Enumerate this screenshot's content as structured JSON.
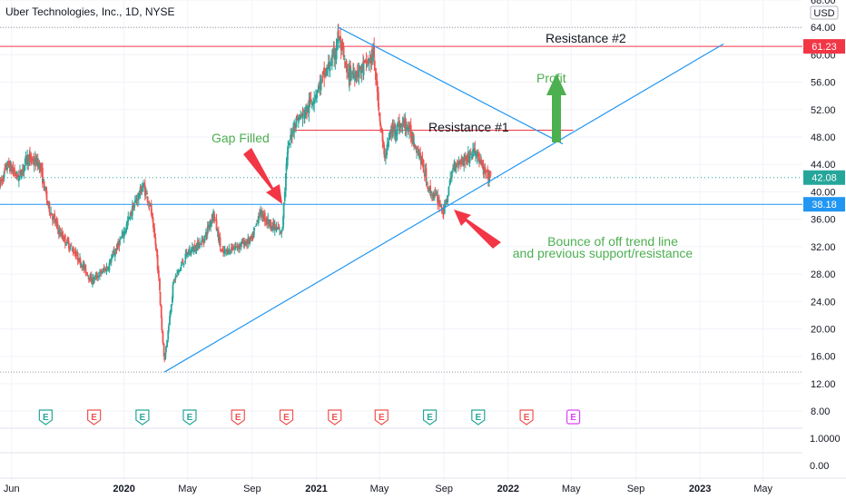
{
  "header": {
    "title": "Uber Technologies, Inc., 1D, NYSE",
    "currency": "USD"
  },
  "colors": {
    "up": "#26a69a",
    "down": "#ef5350",
    "trend": "#2196f3",
    "resistance": "#f23645",
    "green_text": "#4caf50",
    "grid": "#f0f3fa",
    "earn_green": "#26a69a",
    "earn_red": "#ef5350",
    "earn_future": "#e040fb"
  },
  "chart_data": {
    "type": "candlestick",
    "title": "Uber Technologies, Inc., 1D, NYSE",
    "x_ticks": [
      {
        "label": "Jun",
        "date": "2019-06-01",
        "year": false
      },
      {
        "label": "2020",
        "date": "2020-01-01",
        "year": true
      },
      {
        "label": "May",
        "date": "2020-05-01",
        "year": false
      },
      {
        "label": "Sep",
        "date": "2020-09-01",
        "year": false
      },
      {
        "label": "2021",
        "date": "2021-01-01",
        "year": true
      },
      {
        "label": "May",
        "date": "2021-05-01",
        "year": false
      },
      {
        "label": "Sep",
        "date": "2021-09-01",
        "year": false
      },
      {
        "label": "2022",
        "date": "2022-01-01",
        "year": true
      },
      {
        "label": "May",
        "date": "2022-05-01",
        "year": false
      },
      {
        "label": "Sep",
        "date": "2022-09-01",
        "year": false
      },
      {
        "label": "2023",
        "date": "2023-01-01",
        "year": true
      },
      {
        "label": "May",
        "date": "2023-05-01",
        "year": false
      }
    ],
    "x_range": [
      "2019-05-10",
      "2023-07-15"
    ],
    "y_range": [
      5.5,
      68.0
    ],
    "y_ticks": [
      "68.00",
      "64.00",
      "60.00",
      "56.00",
      "52.00",
      "48.00",
      "44.00",
      "40.00",
      "36.00",
      "32.00",
      "28.00",
      "24.00",
      "20.00",
      "16.00",
      "12.00",
      "8.00"
    ],
    "lower_axis_ticks": [
      "1.0000",
      "0.00"
    ],
    "price_path": [
      [
        "2019-05-10",
        41
      ],
      [
        "2019-05-25",
        44
      ],
      [
        "2019-06-15",
        42
      ],
      [
        "2019-07-01",
        45
      ],
      [
        "2019-07-25",
        44
      ],
      [
        "2019-08-10",
        38
      ],
      [
        "2019-09-01",
        34
      ],
      [
        "2019-10-01",
        31
      ],
      [
        "2019-11-01",
        27
      ],
      [
        "2019-12-01",
        29
      ],
      [
        "2020-01-01",
        34
      ],
      [
        "2020-01-20",
        38
      ],
      [
        "2020-02-07",
        41
      ],
      [
        "2020-02-20",
        38
      ],
      [
        "2020-03-05",
        30
      ],
      [
        "2020-03-18",
        15
      ],
      [
        "2020-04-05",
        27
      ],
      [
        "2020-05-01",
        31
      ],
      [
        "2020-06-01",
        33
      ],
      [
        "2020-06-20",
        37
      ],
      [
        "2020-07-05",
        31
      ],
      [
        "2020-08-01",
        32
      ],
      [
        "2020-09-01",
        33
      ],
      [
        "2020-09-15",
        37
      ],
      [
        "2020-10-10",
        35
      ],
      [
        "2020-10-28",
        34
      ],
      [
        "2020-11-06",
        45
      ],
      [
        "2020-11-20",
        50
      ],
      [
        "2020-12-15",
        52
      ],
      [
        "2021-01-10",
        56
      ],
      [
        "2021-02-05",
        60
      ],
      [
        "2021-02-12",
        63
      ],
      [
        "2021-03-01",
        57
      ],
      [
        "2021-04-01",
        58
      ],
      [
        "2021-04-20",
        60
      ],
      [
        "2021-05-10",
        45
      ],
      [
        "2021-05-25",
        49
      ],
      [
        "2021-06-20",
        50
      ],
      [
        "2021-07-15",
        46
      ],
      [
        "2021-08-05",
        40
      ],
      [
        "2021-08-20",
        39
      ],
      [
        "2021-09-01",
        37
      ],
      [
        "2021-09-20",
        44
      ],
      [
        "2021-10-15",
        45
      ],
      [
        "2021-11-01",
        46
      ],
      [
        "2021-11-15",
        43
      ],
      [
        "2021-11-30",
        42
      ]
    ],
    "levels": [
      {
        "name": "resistance-2",
        "value": 61.23,
        "label": "61.23"
      },
      {
        "name": "support",
        "value": 38.18,
        "label": "38.18"
      },
      {
        "name": "last",
        "value": 42.08,
        "label": "42.08"
      },
      {
        "name": "resistance-1",
        "value": 49.0,
        "label": ""
      },
      {
        "name": "top",
        "value": 64.0,
        "label": ""
      },
      {
        "name": "bottom",
        "value": 13.7,
        "label": ""
      }
    ],
    "trend_lines": [
      {
        "name": "rising-trend-line",
        "from": [
          "2020-03-18",
          13.7
        ],
        "to": [
          "2023-02-15",
          61.6
        ]
      },
      {
        "name": "falling-trend-line",
        "from": [
          "2021-02-12",
          64.0
        ],
        "to": [
          "2022-04-15",
          47.0
        ]
      }
    ],
    "resistance_1_range": [
      "2020-11-20",
      "2022-05-05"
    ],
    "earnings": [
      {
        "date": "2019-08-05",
        "type": "green"
      },
      {
        "date": "2019-11-05",
        "type": "red"
      },
      {
        "date": "2020-02-05",
        "type": "green"
      },
      {
        "date": "2020-05-05",
        "type": "green"
      },
      {
        "date": "2020-08-05",
        "type": "red"
      },
      {
        "date": "2020-11-05",
        "type": "red"
      },
      {
        "date": "2021-02-05",
        "type": "red"
      },
      {
        "date": "2021-05-05",
        "type": "red"
      },
      {
        "date": "2021-08-05",
        "type": "green"
      },
      {
        "date": "2021-11-05",
        "type": "green"
      },
      {
        "date": "2022-02-05",
        "type": "red"
      },
      {
        "date": "2022-05-05",
        "type": "future"
      }
    ],
    "earnings_label": "E"
  },
  "annotations": {
    "resistance2": "Resistance #2",
    "resistance1": "Resistance #1",
    "gap_filled": "Gap Filled",
    "profit": "Profit",
    "bounce_line1": "Bounce of off trend line",
    "bounce_line2": "and previous support/resistance"
  }
}
